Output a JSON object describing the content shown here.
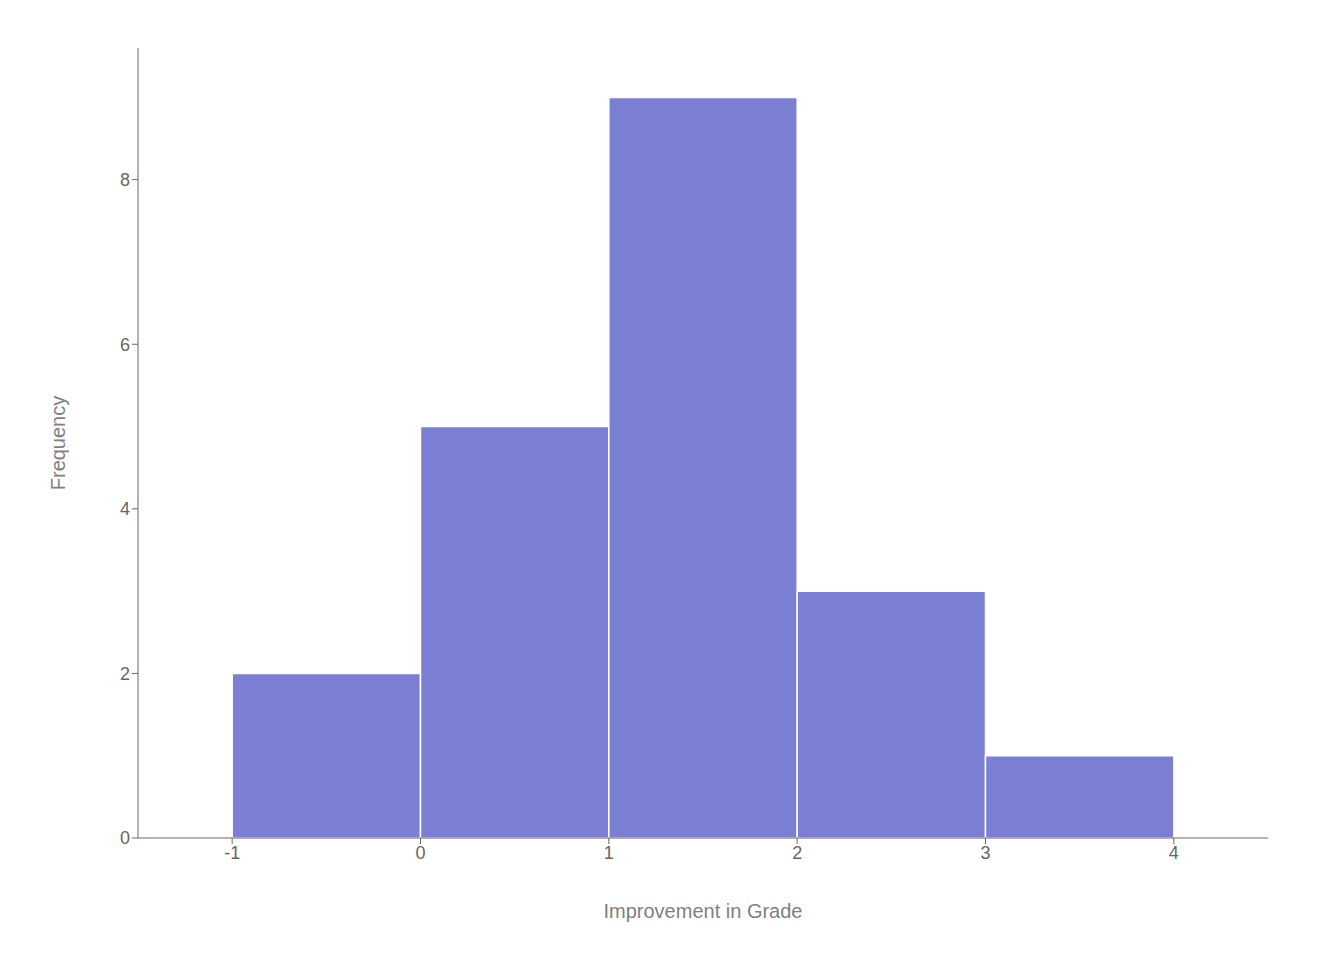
{
  "chart_data": {
    "type": "histogram",
    "xlabel": "Improvement in Grade",
    "ylabel": "Frequency",
    "bins": [
      -1,
      0,
      1,
      2,
      3,
      4
    ],
    "values": [
      2,
      5,
      9,
      3,
      1
    ],
    "color": "#7b7fd4",
    "xlim": [
      -1.5,
      4.5
    ],
    "ylim": [
      0,
      9.6
    ],
    "xticks": [
      -1,
      0,
      1,
      2,
      3,
      4
    ],
    "yticks": [
      0,
      2,
      4,
      6,
      8
    ],
    "grid": false
  }
}
